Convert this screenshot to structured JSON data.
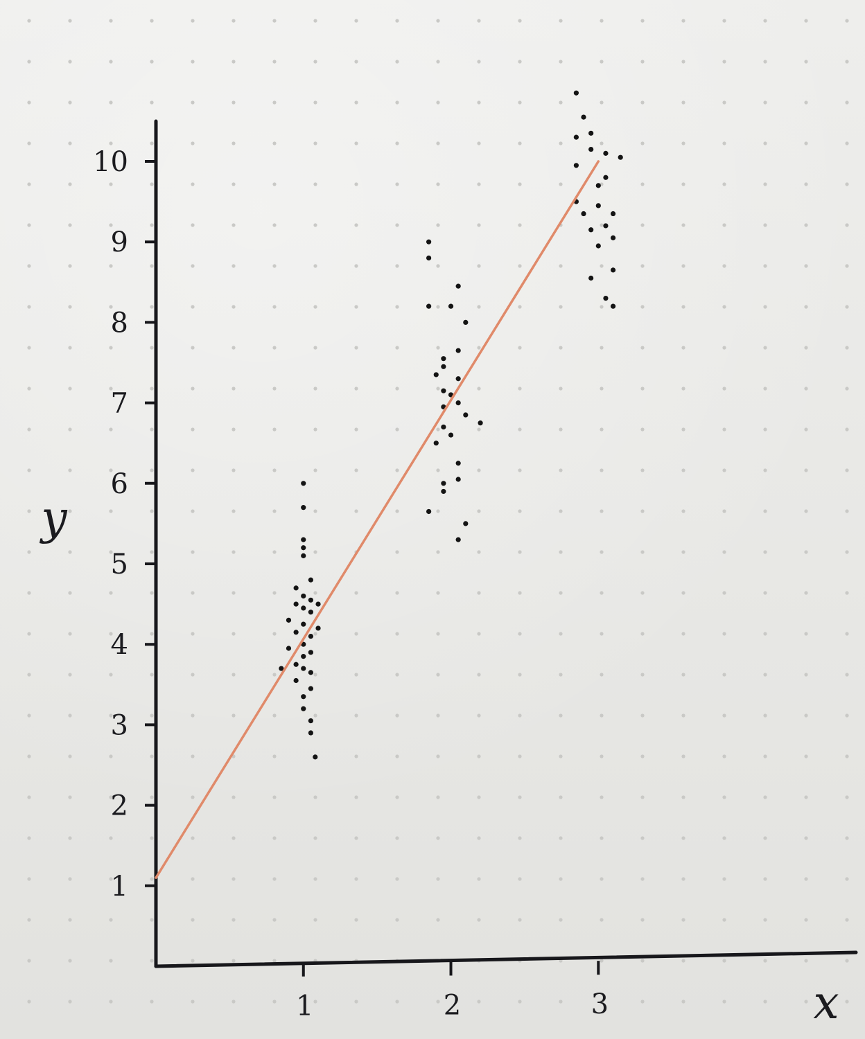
{
  "chart_data": {
    "type": "scatter",
    "title": "",
    "xlabel": "x",
    "ylabel": "y",
    "x_ticks": [
      "1",
      "2",
      "3"
    ],
    "y_ticks": [
      "1",
      "2",
      "3",
      "4",
      "5",
      "6",
      "7",
      "8",
      "9",
      "10"
    ],
    "xlim": [
      0,
      4.7
    ],
    "ylim": [
      0,
      10.5
    ],
    "grid": "dot grid paper",
    "legend": "none",
    "series": [
      {
        "type": "scatter",
        "color": "#141414",
        "points": [
          [
            1,
            6.0
          ],
          [
            1,
            5.7
          ],
          [
            1,
            5.3
          ],
          [
            1,
            5.2
          ],
          [
            1,
            5.1
          ],
          [
            1.05,
            4.8
          ],
          [
            0.95,
            4.7
          ],
          [
            1.0,
            4.6
          ],
          [
            1.05,
            4.55
          ],
          [
            1.1,
            4.5
          ],
          [
            0.95,
            4.5
          ],
          [
            1.0,
            4.45
          ],
          [
            1.05,
            4.4
          ],
          [
            0.9,
            4.3
          ],
          [
            1.0,
            4.25
          ],
          [
            1.1,
            4.2
          ],
          [
            0.95,
            4.15
          ],
          [
            1.05,
            4.1
          ],
          [
            1.0,
            4.0
          ],
          [
            0.9,
            3.95
          ],
          [
            1.05,
            3.9
          ],
          [
            1.0,
            3.85
          ],
          [
            0.95,
            3.75
          ],
          [
            1.0,
            3.7
          ],
          [
            0.85,
            3.7
          ],
          [
            1.05,
            3.65
          ],
          [
            0.95,
            3.55
          ],
          [
            1.05,
            3.45
          ],
          [
            1.0,
            3.35
          ],
          [
            1.0,
            3.2
          ],
          [
            1.05,
            3.05
          ],
          [
            1.05,
            2.9
          ],
          [
            1.08,
            2.6
          ],
          [
            1.85,
            9.0
          ],
          [
            1.85,
            8.8
          ],
          [
            2.05,
            8.45
          ],
          [
            1.85,
            8.2
          ],
          [
            2.0,
            8.2
          ],
          [
            2.1,
            8.0
          ],
          [
            2.05,
            7.65
          ],
          [
            1.95,
            7.55
          ],
          [
            1.95,
            7.45
          ],
          [
            2.05,
            7.3
          ],
          [
            1.9,
            7.35
          ],
          [
            1.95,
            7.15
          ],
          [
            2.0,
            7.1
          ],
          [
            2.05,
            7.0
          ],
          [
            1.95,
            6.95
          ],
          [
            2.1,
            6.85
          ],
          [
            2.2,
            6.75
          ],
          [
            1.95,
            6.7
          ],
          [
            2.0,
            6.6
          ],
          [
            1.9,
            6.5
          ],
          [
            2.05,
            6.25
          ],
          [
            2.05,
            6.05
          ],
          [
            1.95,
            6.0
          ],
          [
            1.95,
            5.9
          ],
          [
            1.85,
            5.65
          ],
          [
            2.1,
            5.5
          ],
          [
            2.05,
            5.3
          ],
          [
            2.85,
            10.85
          ],
          [
            2.9,
            10.55
          ],
          [
            2.95,
            10.35
          ],
          [
            2.85,
            10.3
          ],
          [
            2.95,
            10.15
          ],
          [
            3.05,
            10.1
          ],
          [
            3.15,
            10.05
          ],
          [
            2.85,
            9.95
          ],
          [
            3.05,
            9.8
          ],
          [
            3.0,
            9.7
          ],
          [
            2.85,
            9.5
          ],
          [
            3.0,
            9.45
          ],
          [
            2.9,
            9.35
          ],
          [
            3.1,
            9.35
          ],
          [
            3.05,
            9.2
          ],
          [
            2.95,
            9.15
          ],
          [
            3.1,
            9.05
          ],
          [
            3.0,
            8.95
          ],
          [
            3.1,
            8.65
          ],
          [
            2.95,
            8.55
          ],
          [
            3.05,
            8.3
          ],
          [
            3.1,
            8.2
          ]
        ]
      },
      {
        "type": "line",
        "color": "#e08a6a",
        "points": [
          [
            0,
            1.1
          ],
          [
            3,
            10.0
          ]
        ]
      }
    ]
  }
}
